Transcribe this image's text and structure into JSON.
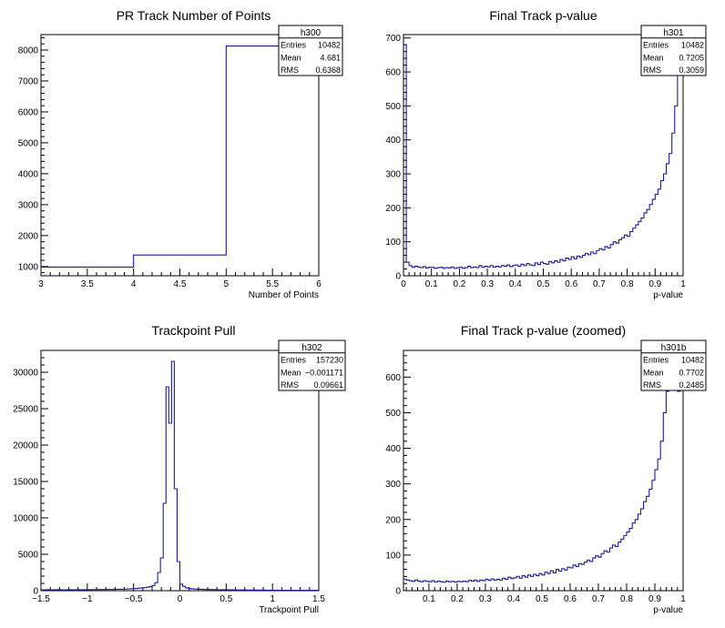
{
  "chart_data": [
    {
      "id": "h300",
      "type": "histogram",
      "title": "PR Track Number of Points",
      "xlabel": "Number of Points",
      "ylabel": "",
      "xlim": [
        3,
        6
      ],
      "ylim": [
        700,
        8500
      ],
      "xticks": [
        "3",
        "3.5",
        "4",
        "4.5",
        "5",
        "5.5",
        "6"
      ],
      "yticks": [
        "1000",
        "2000",
        "3000",
        "4000",
        "5000",
        "6000",
        "7000",
        "8000"
      ],
      "bin_edges": [
        3,
        4,
        5,
        6
      ],
      "values": [
        980,
        1370,
        8130
      ],
      "stats": {
        "name": "h300",
        "entries": "10482",
        "mean": "4.681",
        "rms": "0.6368"
      }
    },
    {
      "id": "h301",
      "type": "histogram",
      "title": "Final Track p-value",
      "xlabel": "p-value",
      "ylabel": "",
      "xlim": [
        0,
        1
      ],
      "ylim": [
        0,
        710
      ],
      "xticks": [
        "0",
        "0.1",
        "0.2",
        "0.3",
        "0.4",
        "0.5",
        "0.6",
        "0.7",
        "0.8",
        "0.9",
        "1"
      ],
      "yticks": [
        "0",
        "100",
        "200",
        "300",
        "400",
        "500",
        "600",
        "700"
      ],
      "nbins": 100,
      "values": [
        680,
        40,
        30,
        25,
        28,
        26,
        24,
        27,
        23,
        25,
        25,
        22,
        24,
        25,
        22,
        24,
        23,
        26,
        22,
        24,
        25,
        22,
        24,
        28,
        24,
        26,
        24,
        30,
        25,
        28,
        26,
        30,
        25,
        28,
        26,
        30,
        28,
        32,
        27,
        30,
        32,
        28,
        34,
        30,
        36,
        32,
        30,
        38,
        33,
        40,
        36,
        34,
        42,
        38,
        44,
        40,
        48,
        44,
        52,
        48,
        56,
        50,
        58,
        54,
        60,
        66,
        62,
        70,
        65,
        74,
        80,
        76,
        86,
        82,
        92,
        100,
        96,
        106,
        112,
        120,
        116,
        130,
        140,
        150,
        160,
        170,
        185,
        195,
        210,
        225,
        240,
        255,
        280,
        300,
        330,
        360,
        420,
        500,
        650,
        700
      ],
      "stats": {
        "name": "h301",
        "entries": "10482",
        "mean": "0.7205",
        "rms": "0.3059"
      }
    },
    {
      "id": "h302",
      "type": "histogram",
      "title": "Trackpoint Pull",
      "xlabel": "Trackpoint Pull",
      "ylabel": "",
      "xlim": [
        -1.5,
        1.5
      ],
      "ylim": [
        0,
        33000
      ],
      "xticks": [
        "−1.5",
        "−1",
        "−0.5",
        "0",
        "0.5",
        "1",
        "1.5"
      ],
      "yticks": [
        "0",
        "5000",
        "10000",
        "15000",
        "20000",
        "25000",
        "30000"
      ],
      "nbins": 100,
      "values": [
        100,
        120,
        130,
        110,
        120,
        140,
        130,
        120,
        110,
        120,
        130,
        120,
        140,
        130,
        120,
        130,
        140,
        130,
        150,
        140,
        160,
        150,
        170,
        160,
        180,
        170,
        190,
        200,
        190,
        210,
        220,
        240,
        260,
        280,
        300,
        350,
        380,
        420,
        480,
        560,
        700,
        1100,
        2500,
        4500,
        12000,
        28000,
        23000,
        31500,
        14000,
        4000,
        900,
        600,
        380,
        300,
        260,
        230,
        210,
        200,
        180,
        170,
        160,
        150,
        150,
        140,
        140,
        130,
        130,
        120,
        120,
        110,
        110,
        100,
        100,
        100,
        90,
        90,
        90,
        80,
        80,
        80,
        80,
        70,
        70,
        70,
        70,
        60,
        60,
        60,
        60,
        60,
        50,
        50,
        50,
        50,
        50,
        50,
        50,
        50,
        50,
        50
      ],
      "stats": {
        "name": "h302",
        "entries": "157230",
        "mean": "−0.001171",
        "rms": "0.09661"
      }
    },
    {
      "id": "h301b",
      "type": "histogram",
      "title": "Final Track p-value (zoomed)",
      "xlabel": "p-value",
      "ylabel": "",
      "xlim": [
        0.01,
        1
      ],
      "ylim": [
        0,
        675
      ],
      "xticks": [
        "0.1",
        "0.2",
        "0.3",
        "0.4",
        "0.5",
        "0.6",
        "0.7",
        "0.8",
        "0.9",
        "1"
      ],
      "xtick_values": [
        0.1,
        0.2,
        0.3,
        0.4,
        0.5,
        0.6,
        0.7,
        0.8,
        0.9,
        1.0
      ],
      "yticks": [
        "0",
        "100",
        "200",
        "300",
        "400",
        "500",
        "600"
      ],
      "nbins": 99,
      "values": [
        32,
        30,
        28,
        26,
        30,
        27,
        25,
        28,
        26,
        25,
        28,
        24,
        27,
        25,
        24,
        27,
        25,
        26,
        24,
        26,
        25,
        27,
        25,
        29,
        27,
        30,
        26,
        30,
        28,
        32,
        29,
        33,
        30,
        32,
        30,
        35,
        32,
        38,
        34,
        36,
        40,
        35,
        42,
        38,
        44,
        40,
        46,
        42,
        48,
        44,
        52,
        48,
        56,
        50,
        60,
        55,
        62,
        58,
        66,
        64,
        72,
        68,
        76,
        74,
        80,
        86,
        82,
        92,
        98,
        94,
        104,
        112,
        108,
        120,
        128,
        124,
        136,
        145,
        155,
        165,
        175,
        190,
        200,
        215,
        230,
        250,
        265,
        285,
        310,
        340,
        370,
        420,
        500,
        560,
        660,
        600,
        580,
        560,
        600
      ],
      "stats": {
        "name": "h301b",
        "entries": "10482",
        "mean": "0.7702",
        "rms": "0.2485"
      }
    }
  ],
  "stats_labels": {
    "entries": "Entries",
    "mean": "Mean",
    "rms": "RMS"
  },
  "colors": {
    "line": "#1c1c9c",
    "axis": "#000000",
    "background": "#ffffff"
  }
}
